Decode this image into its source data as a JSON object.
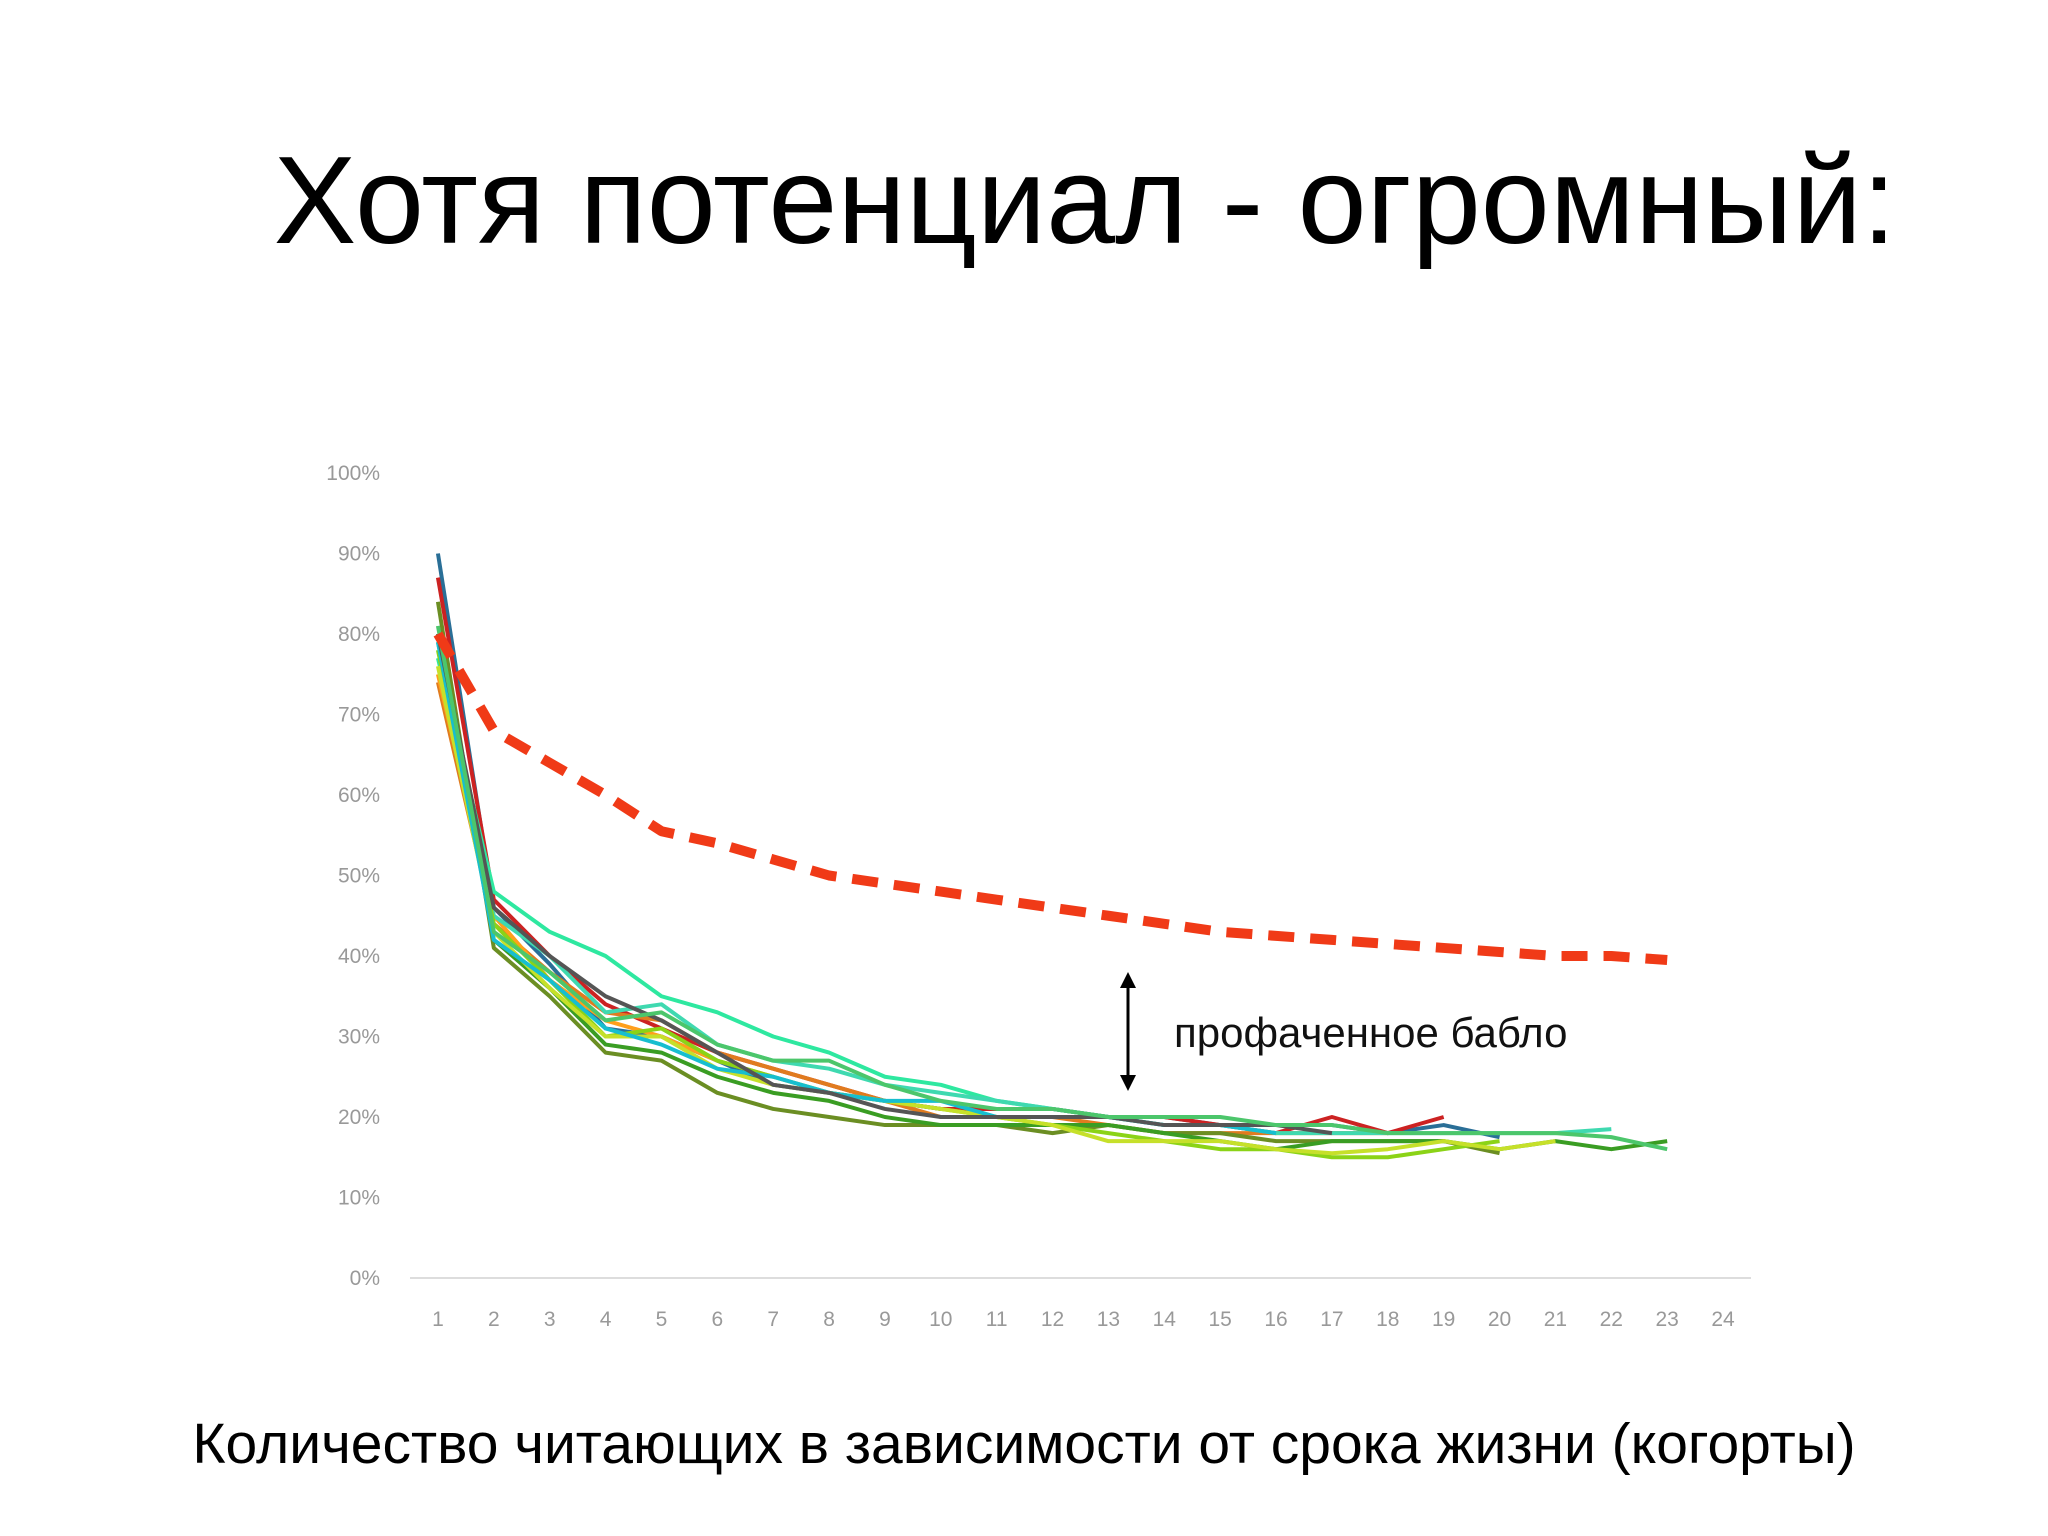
{
  "chart_data": {
    "type": "line",
    "title": "Хотя потенциал - огромный:",
    "annotation": "профаченное бабло",
    "caption": "Количество читающих в зависимости от срока жизни (когорты)",
    "x": [
      1,
      2,
      3,
      4,
      5,
      6,
      7,
      8,
      9,
      10,
      11,
      12,
      13,
      14,
      15,
      16,
      17,
      18,
      19,
      20,
      21,
      22,
      23,
      24
    ],
    "xlim": [
      0.5,
      24.5
    ],
    "xticks": [
      1,
      2,
      3,
      4,
      5,
      6,
      7,
      8,
      9,
      10,
      11,
      12,
      13,
      14,
      15,
      16,
      17,
      18,
      19,
      20,
      21,
      22,
      23,
      24
    ],
    "ylim": [
      0,
      100
    ],
    "yticks": [
      {
        "value": 0,
        "label": "0%"
      },
      {
        "value": 10,
        "label": "10%"
      },
      {
        "value": 20,
        "label": "20%"
      },
      {
        "value": 30,
        "label": "30%"
      },
      {
        "value": 40,
        "label": "40%"
      },
      {
        "value": 50,
        "label": "50%"
      },
      {
        "value": 60,
        "label": "60%"
      },
      {
        "value": 70,
        "label": "70%"
      },
      {
        "value": 80,
        "label": "80%"
      },
      {
        "value": 90,
        "label": "90%"
      },
      {
        "value": 100,
        "label": "100%"
      }
    ],
    "grid": false,
    "series": [
      {
        "color": "#2a6f97",
        "values": [
          90,
          46,
          39,
          31,
          30,
          27,
          24,
          23,
          22,
          21,
          21,
          21,
          20,
          20,
          19,
          19,
          19,
          18,
          19,
          17.5,
          null,
          null,
          null,
          null
        ]
      },
      {
        "color": "#cc2222",
        "values": [
          87,
          47,
          40,
          34,
          31,
          28,
          26,
          24,
          22,
          21,
          21,
          21,
          20,
          20,
          19,
          18,
          20,
          18,
          20,
          null,
          null,
          null,
          null,
          null
        ]
      },
      {
        "color": "#e07b1f",
        "values": [
          74,
          44,
          38,
          33,
          32,
          28,
          26,
          24,
          22,
          20,
          20,
          20,
          19,
          18,
          18,
          18,
          18,
          18,
          null,
          null,
          null,
          null,
          null,
          null
        ]
      },
      {
        "color": "#ff9f1c",
        "values": [
          75,
          45,
          37,
          32,
          30,
          27,
          25,
          null,
          null,
          null,
          null,
          null,
          null,
          null,
          null,
          null,
          null,
          null,
          null,
          null,
          null,
          null,
          null,
          null
        ]
      },
      {
        "color": "#2ee8a0",
        "values": [
          77,
          48,
          43,
          40,
          35,
          33,
          30,
          28,
          25,
          24,
          22,
          21,
          20,
          19,
          19,
          19,
          null,
          null,
          null,
          null,
          null,
          null,
          null,
          null
        ]
      },
      {
        "color": "#3fd9b0",
        "values": [
          79,
          45,
          40,
          33,
          34,
          29,
          27,
          26,
          24,
          23,
          22,
          21,
          20,
          19,
          19,
          18,
          18,
          18,
          18,
          18,
          18,
          18.5,
          null,
          null
        ]
      },
      {
        "color": "#6b8e23",
        "values": [
          84,
          41,
          35,
          28,
          27,
          23,
          21,
          20,
          19,
          19,
          19,
          18,
          19,
          18,
          18,
          17,
          17,
          17,
          17,
          15.5,
          null,
          null,
          null,
          null
        ]
      },
      {
        "color": "#3a9d23",
        "values": [
          80,
          42,
          36,
          29,
          28,
          25,
          23,
          22,
          20,
          19,
          19,
          19,
          19,
          18,
          17,
          16,
          17,
          17,
          17,
          16,
          17,
          16,
          17,
          null
        ]
      },
      {
        "color": "#8bd317",
        "values": [
          78,
          44,
          37,
          30,
          31,
          27,
          25,
          23,
          22,
          21,
          20,
          19,
          18,
          17,
          16,
          16,
          15,
          15,
          16,
          17,
          null,
          null,
          null,
          null
        ]
      },
      {
        "color": "#c6e02a",
        "values": [
          76,
          43,
          36,
          30,
          30,
          26,
          24,
          23,
          22,
          21,
          20,
          19,
          17,
          17,
          17,
          16,
          15.5,
          16,
          17,
          16,
          17,
          null,
          null,
          null
        ]
      },
      {
        "color": "#17becf",
        "values": [
          79,
          42,
          37,
          31,
          29,
          26,
          25,
          23,
          22,
          22,
          20,
          20,
          20,
          19,
          19,
          18,
          null,
          null,
          null,
          null,
          null,
          null,
          null,
          null
        ]
      },
      {
        "color": "#555555",
        "values": [
          80,
          46,
          40,
          35,
          32,
          28,
          24,
          23,
          21,
          20,
          20,
          20,
          20,
          19,
          19,
          19,
          18,
          null,
          null,
          null,
          null,
          null,
          null,
          null
        ]
      },
      {
        "color": "#4cc66b",
        "values": [
          81,
          43,
          38,
          32,
          33,
          29,
          27,
          27,
          24,
          22,
          21,
          21,
          20,
          20,
          20,
          19,
          19,
          18,
          18,
          18,
          18,
          17.5,
          16,
          null
        ]
      },
      {
        "color": "#f03a17",
        "dashed": true,
        "values": [
          80,
          68,
          64,
          60,
          55.5,
          54,
          52,
          50,
          49,
          48,
          47,
          46,
          45,
          44,
          43,
          42.5,
          42,
          41.5,
          41,
          40.5,
          40,
          40,
          39.5,
          null
        ]
      }
    ]
  }
}
